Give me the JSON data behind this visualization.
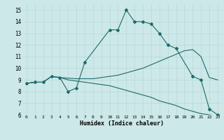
{
  "xlabel": "Humidex (Indice chaleur)",
  "ylabel": "",
  "xlim": [
    -0.5,
    23.5
  ],
  "ylim": [
    6,
    15.5
  ],
  "xticks": [
    0,
    1,
    2,
    3,
    4,
    5,
    6,
    7,
    8,
    9,
    10,
    11,
    12,
    13,
    14,
    15,
    16,
    17,
    18,
    19,
    20,
    21,
    22,
    23
  ],
  "yticks": [
    6,
    7,
    8,
    9,
    10,
    11,
    12,
    13,
    14,
    15
  ],
  "bg_color": "#cde8e8",
  "line_color": "#1e6b6b",
  "grid_color": "#b8d8d8",
  "curves": [
    {
      "x": [
        0,
        1,
        2,
        3,
        4,
        5,
        6,
        7,
        10,
        11,
        12,
        13,
        14,
        15,
        16,
        17,
        18,
        20,
        21,
        22,
        23
      ],
      "y": [
        8.7,
        8.8,
        8.8,
        9.3,
        9.2,
        8.0,
        8.3,
        10.5,
        13.3,
        13.3,
        15.0,
        14.0,
        14.0,
        13.8,
        13.0,
        12.0,
        11.7,
        9.3,
        9.0,
        6.5,
        6.0
      ],
      "markers": true
    },
    {
      "x": [
        0,
        1,
        2,
        3,
        4,
        5,
        6,
        7,
        8,
        9,
        10,
        11,
        12,
        13,
        14,
        15,
        16,
        17,
        18,
        19,
        20,
        21,
        22,
        23
      ],
      "y": [
        8.7,
        8.8,
        8.8,
        9.3,
        9.2,
        9.15,
        9.1,
        9.1,
        9.1,
        9.2,
        9.3,
        9.4,
        9.6,
        9.8,
        10.0,
        10.3,
        10.6,
        10.9,
        11.2,
        11.5,
        11.6,
        11.0,
        9.2,
        9.0
      ],
      "markers": false
    },
    {
      "x": [
        0,
        1,
        2,
        3,
        4,
        5,
        6,
        7,
        8,
        9,
        10,
        11,
        12,
        13,
        14,
        15,
        16,
        17,
        18,
        19,
        20,
        21,
        22,
        23
      ],
      "y": [
        8.7,
        8.8,
        8.8,
        9.3,
        9.2,
        9.0,
        8.9,
        8.8,
        8.7,
        8.6,
        8.5,
        8.3,
        8.1,
        7.9,
        7.7,
        7.5,
        7.2,
        7.0,
        6.8,
        6.5,
        6.3,
        6.1,
        6.0,
        5.9
      ],
      "markers": false
    }
  ]
}
